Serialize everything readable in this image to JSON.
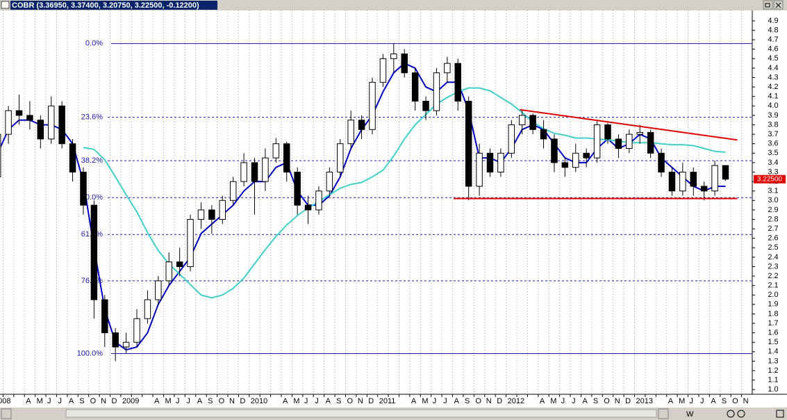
{
  "header": {
    "title": "COBR (3.36950, 3.37400, 3.20750, 3.22500, -0.12200)"
  },
  "toolbar": {
    "period": "W"
  },
  "chart_data": {
    "type": "candlestick",
    "categories": [
      "2008",
      null,
      null,
      "A",
      "M",
      "J",
      "J",
      "A",
      "S",
      "O",
      "N",
      "D",
      "2009",
      null,
      null,
      "A",
      "M",
      "J",
      "J",
      "A",
      "S",
      "O",
      "N",
      "D",
      "2010",
      null,
      null,
      "A",
      "M",
      "J",
      "J",
      "A",
      "S",
      "O",
      "N",
      "D",
      "2011",
      null,
      null,
      "A",
      "M",
      "J",
      "J",
      "A",
      "S",
      "O",
      "N",
      "D",
      "2012",
      null,
      null,
      "A",
      "M",
      "J",
      "J",
      "A",
      "S",
      "O",
      "N",
      "D",
      "2013",
      null,
      null,
      "A",
      "M",
      "J",
      "J",
      "A",
      "S",
      "O",
      "N"
    ],
    "open": [
      3.25,
      3.7,
      3.95,
      3.9,
      3.85,
      3.65,
      4.0,
      3.6,
      3.3,
      2.95,
      1.95,
      1.6,
      1.45,
      1.5,
      1.75,
      1.95,
      2.15,
      2.35,
      2.3,
      2.8,
      2.9,
      2.8,
      3.0,
      3.2,
      3.4,
      3.2,
      3.45,
      3.6,
      3.3,
      2.95,
      2.9,
      3.1,
      3.3,
      3.6,
      3.85,
      3.75,
      4.25,
      4.5,
      4.55,
      4.35,
      4.05,
      3.95,
      4.35,
      4.45,
      4.05,
      3.15,
      3.5,
      3.3,
      3.5,
      3.8,
      3.9,
      3.75,
      3.65,
      3.4,
      3.35,
      3.5,
      3.45,
      3.8,
      3.65,
      3.55,
      3.7,
      3.72,
      3.5,
      3.3,
      3.1,
      3.3,
      3.15,
      3.1,
      3.3695,
      null,
      null
    ],
    "high": [
      3.75,
      4.0,
      4.12,
      4.05,
      3.9,
      4.1,
      4.05,
      3.65,
      3.35,
      3.0,
      2.0,
      1.65,
      1.6,
      1.85,
      2.05,
      2.2,
      2.45,
      2.5,
      2.85,
      2.98,
      2.95,
      3.05,
      3.25,
      3.5,
      3.45,
      3.55,
      3.66,
      3.62,
      3.35,
      3.05,
      3.15,
      3.35,
      3.65,
      3.95,
      3.9,
      4.3,
      4.55,
      4.66,
      4.6,
      4.4,
      4.1,
      4.4,
      4.52,
      4.5,
      4.1,
      3.6,
      3.55,
      3.55,
      3.85,
      3.96,
      3.92,
      3.85,
      3.7,
      3.45,
      3.6,
      3.55,
      3.85,
      3.82,
      3.7,
      3.75,
      3.8,
      3.75,
      3.55,
      3.35,
      3.4,
      3.35,
      3.2,
      3.42,
      3.374,
      null,
      null
    ],
    "low": [
      3.15,
      3.6,
      3.8,
      3.75,
      3.55,
      3.6,
      3.55,
      3.2,
      2.85,
      1.75,
      1.45,
      1.3,
      1.38,
      1.45,
      1.7,
      1.9,
      2.1,
      2.2,
      2.25,
      2.7,
      2.65,
      2.75,
      2.95,
      3.15,
      2.85,
      3.1,
      3.4,
      3.2,
      2.85,
      2.75,
      2.85,
      3.05,
      3.25,
      3.55,
      3.65,
      3.7,
      4.2,
      4.35,
      4.3,
      3.95,
      3.85,
      3.9,
      4.25,
      3.95,
      3.0,
      3.05,
      3.25,
      3.25,
      3.45,
      3.7,
      3.7,
      3.55,
      3.3,
      3.25,
      3.3,
      3.35,
      3.4,
      3.6,
      3.45,
      3.5,
      3.6,
      3.45,
      3.25,
      3.05,
      3.05,
      3.05,
      3.0,
      3.05,
      3.2075,
      null,
      null
    ],
    "close": [
      3.7,
      3.95,
      3.9,
      3.85,
      3.65,
      4.0,
      3.6,
      3.3,
      2.95,
      1.95,
      1.6,
      1.45,
      1.5,
      1.75,
      1.95,
      2.15,
      2.35,
      2.3,
      2.8,
      2.9,
      2.8,
      3.0,
      3.2,
      3.4,
      3.2,
      3.45,
      3.6,
      3.3,
      2.95,
      2.9,
      3.1,
      3.3,
      3.6,
      3.85,
      3.75,
      4.25,
      4.5,
      4.55,
      4.35,
      4.05,
      3.95,
      4.35,
      4.45,
      4.05,
      3.15,
      3.5,
      3.3,
      3.5,
      3.8,
      3.9,
      3.75,
      3.65,
      3.4,
      3.35,
      3.5,
      3.45,
      3.8,
      3.65,
      3.55,
      3.7,
      3.72,
      3.5,
      3.3,
      3.1,
      3.3,
      3.15,
      3.1,
      3.37,
      3.225,
      null,
      null
    ],
    "last_price": {
      "value": 3.225,
      "label": "3.22500",
      "color": "#e00000"
    },
    "series": [
      {
        "color": "#0000c0",
        "values": [
          3.5,
          3.75,
          3.85,
          3.85,
          3.8,
          3.8,
          3.75,
          3.6,
          3.2,
          2.5,
          1.85,
          1.5,
          1.42,
          1.45,
          1.6,
          1.9,
          2.1,
          2.25,
          2.4,
          2.65,
          2.75,
          2.85,
          2.95,
          3.1,
          3.2,
          3.2,
          3.35,
          3.4,
          3.1,
          2.95,
          2.95,
          3.05,
          3.25,
          3.55,
          3.75,
          3.9,
          4.15,
          4.35,
          4.45,
          4.4,
          4.2,
          4.15,
          4.25,
          4.25,
          3.95,
          3.45,
          3.45,
          3.4,
          3.55,
          3.75,
          3.8,
          3.75,
          3.6,
          3.45,
          3.4,
          3.4,
          3.55,
          3.65,
          3.55,
          3.6,
          3.7,
          3.65,
          3.45,
          3.35,
          3.25,
          3.15,
          3.1,
          3.15,
          3.15,
          null,
          null
        ]
      },
      {
        "color": "#40d0c8",
        "values": [
          null,
          null,
          null,
          null,
          null,
          null,
          null,
          null,
          3.56,
          3.54,
          3.43,
          3.25,
          3.06,
          2.88,
          2.66,
          2.47,
          2.33,
          2.22,
          2.11,
          2.0,
          1.97,
          2.0,
          2.07,
          2.18,
          2.33,
          2.48,
          2.62,
          2.74,
          2.84,
          2.92,
          2.99,
          3.06,
          3.13,
          3.17,
          3.19,
          3.25,
          3.32,
          3.47,
          3.65,
          3.8,
          3.91,
          4.02,
          4.09,
          4.15,
          4.19,
          4.19,
          4.16,
          4.09,
          4.02,
          3.93,
          3.83,
          3.76,
          3.71,
          3.69,
          3.66,
          3.66,
          3.65,
          3.64,
          3.63,
          3.61,
          3.61,
          3.61,
          3.6,
          3.59,
          3.59,
          3.58,
          3.55,
          3.52,
          3.51,
          null,
          null
        ]
      }
    ],
    "trendlines": [
      {
        "color": "#e00000",
        "x": [
          49.3,
          69.6
        ],
        "y": [
          3.96,
          3.64
        ]
      },
      {
        "color": "#e00000",
        "x": [
          43.1,
          69.6
        ],
        "y": [
          3.02,
          3.02
        ]
      }
    ],
    "fib_levels": [
      {
        "label": "0.0%",
        "value": 4.66,
        "solid": true
      },
      {
        "label": "23.6%",
        "value": 3.88,
        "solid": false
      },
      {
        "label": "38.2%",
        "value": 3.42,
        "solid": false
      },
      {
        "label": "50.0%",
        "value": 3.03,
        "solid": false
      },
      {
        "label": "61.8%",
        "value": 2.64,
        "solid": false
      },
      {
        "label": "76.4%",
        "value": 2.15,
        "solid": false
      },
      {
        "label": "100.0%",
        "value": 1.38,
        "solid": true
      }
    ],
    "fib_color": "#1a1aa0",
    "ylim": [
      0.95,
      5.01
    ],
    "yticks": [
      {
        "value": 1,
        "label": "1.0"
      },
      1.1,
      1.2,
      1.3,
      1.4,
      1.5,
      1.6,
      1.7,
      1.8,
      1.9,
      {
        "value": 2,
        "label": "2.0"
      },
      2.1,
      2.2,
      2.3,
      2.4,
      2.5,
      2.6,
      2.7,
      2.8,
      2.9,
      {
        "value": 3,
        "label": "3.0"
      },
      3.1,
      3.2,
      3.3,
      3.4,
      3.5,
      3.6,
      3.7,
      3.8,
      3.9,
      {
        "value": 4,
        "label": "4.0"
      },
      4.1,
      4.2,
      4.3,
      4.4,
      4.5,
      4.6,
      4.7,
      4.8,
      4.9
    ],
    "grid": true
  }
}
